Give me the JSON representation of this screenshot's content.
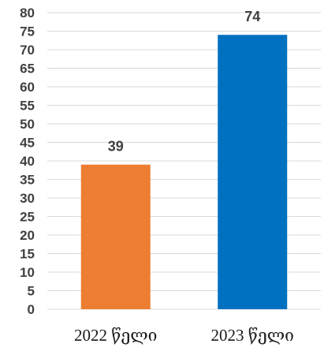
{
  "chart_data": {
    "type": "bar",
    "categories": [
      "2022 წელი",
      "2023 წელი"
    ],
    "values": [
      39,
      74
    ],
    "data_labels": [
      "39",
      "74"
    ],
    "colors": [
      "#ED7D31",
      "#0070C0"
    ],
    "ylim": [
      0,
      80
    ],
    "yticks": [
      0,
      5,
      10,
      15,
      20,
      25,
      30,
      35,
      40,
      45,
      50,
      55,
      60,
      65,
      70,
      75,
      80
    ],
    "grid": true,
    "legend": "none",
    "title": "",
    "xlabel": "",
    "ylabel": ""
  }
}
